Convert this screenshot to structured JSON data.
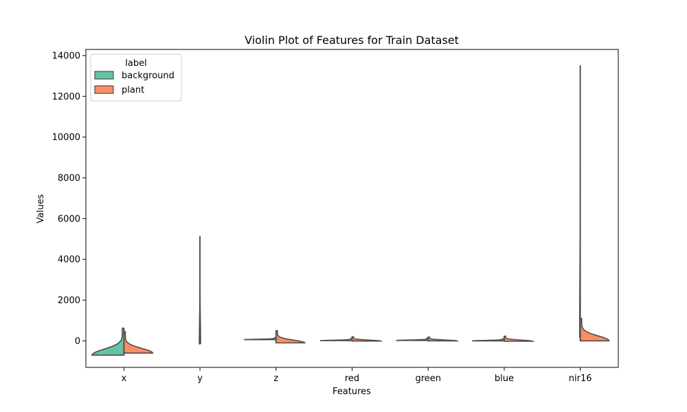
{
  "chart_data": {
    "type": "violin",
    "title": "Violin Plot of Features for Train Dataset",
    "xlabel": "Features",
    "ylabel": "Values",
    "categories": [
      "x",
      "y",
      "z",
      "red",
      "green",
      "blue",
      "nir16"
    ],
    "ylim": [
      -1300,
      14300
    ],
    "yticks": [
      0,
      2000,
      4000,
      6000,
      8000,
      10000,
      12000,
      14000
    ],
    "ytick_labels": [
      "0",
      "2000",
      "4000",
      "6000",
      "8000",
      "10000",
      "12000",
      "14000"
    ],
    "grid": false,
    "legend": {
      "title": "label",
      "placement": "top-left",
      "entries": [
        {
          "name": "background",
          "color": "#66c2a5"
        },
        {
          "name": "plant",
          "color": "#fc8d62"
        }
      ]
    },
    "series": [
      {
        "name": "background",
        "ranges": [
          [
            -700,
            620
          ],
          [
            -150,
            5120
          ],
          [
            60,
            150
          ],
          [
            10,
            110
          ],
          [
            20,
            120
          ],
          [
            0,
            100
          ],
          [
            200,
            13500
          ]
        ]
      },
      {
        "name": "plant",
        "ranges": [
          [
            -600,
            450
          ],
          [
            -120,
            4950
          ],
          [
            -100,
            500
          ],
          [
            -10,
            200
          ],
          [
            0,
            190
          ],
          [
            -20,
            230
          ],
          [
            0,
            1100
          ]
        ]
      }
    ],
    "colors": {
      "outline": "#4d4d4d",
      "axes": "#000000"
    }
  }
}
